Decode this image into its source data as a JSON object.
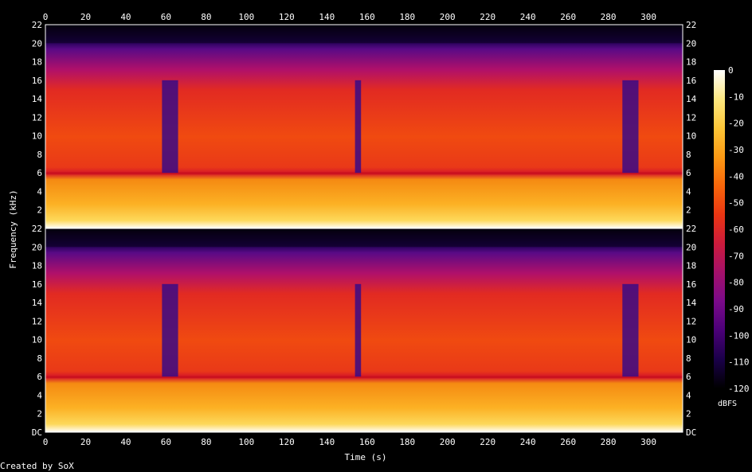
{
  "chart_data": {
    "type": "heatmap",
    "subtype": "spectrogram",
    "channels": 2,
    "xlabel": "Time (s)",
    "ylabel": "Frequency (kHz)",
    "xlim": [
      0,
      317
    ],
    "ylim": [
      0,
      22
    ],
    "x_ticks": [
      "0",
      "20",
      "40",
      "60",
      "80",
      "100",
      "120",
      "140",
      "160",
      "180",
      "200",
      "220",
      "240",
      "260",
      "280",
      "300"
    ],
    "y_ticks": [
      "DC",
      "2",
      "4",
      "6",
      "8",
      "10",
      "12",
      "14",
      "16",
      "18",
      "20",
      "22"
    ],
    "y_ticks_upper": [
      "2",
      "4",
      "6",
      "8",
      "10",
      "12",
      "14",
      "16",
      "18",
      "20",
      "22"
    ],
    "colorbar": {
      "label": "dBFS",
      "ticks": [
        "0",
        "-10",
        "-20",
        "-30",
        "-40",
        "-50",
        "-60",
        "-70",
        "-80",
        "-90",
        "-100",
        "-110",
        "-120"
      ],
      "range": [
        -120,
        0
      ],
      "colors": [
        "#000000",
        "#1a0049",
        "#4b0078",
        "#7a0a8a",
        "#a4106a",
        "#cc1b3c",
        "#ea3512",
        "#f8660a",
        "#fc9a14",
        "#fdc637",
        "#fde880",
        "#ffffff"
      ]
    },
    "features": {
      "energy_cutoff_khz": 20,
      "bright_band_khz": 6,
      "quiet_gaps_s": [
        [
          58,
          66
        ],
        [
          154,
          157
        ],
        [
          287,
          295
        ]
      ]
    },
    "credit": "Created by SoX"
  }
}
